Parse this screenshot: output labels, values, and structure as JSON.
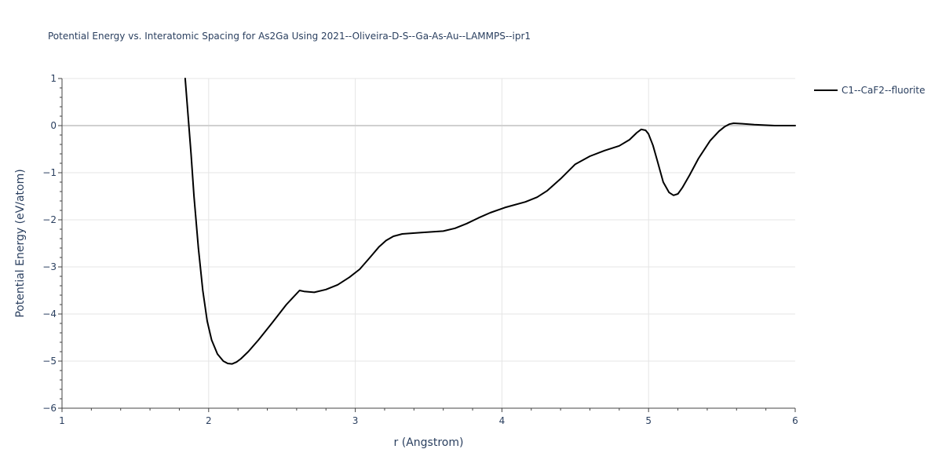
{
  "chart_data": {
    "type": "line",
    "title": "Potential Energy vs. Interatomic Spacing for As2Ga Using 2021--Oliveira-D-S--Ga-As-Au--LAMMPS--ipr1",
    "xlabel": "r (Angstrom)",
    "ylabel": "Potential Energy (eV/atom)",
    "xlim": [
      1,
      6
    ],
    "ylim": [
      -6,
      1
    ],
    "x_ticks": [
      1,
      2,
      3,
      4,
      5,
      6
    ],
    "y_ticks": [
      -6,
      -5,
      -4,
      -3,
      -2,
      -1,
      0,
      1
    ],
    "x_tick_labels": [
      "1",
      "2",
      "3",
      "4",
      "5",
      "6"
    ],
    "y_tick_labels": [
      "−6",
      "−5",
      "−4",
      "−3",
      "−2",
      "−1",
      "0",
      "1"
    ],
    "grid": true,
    "legend_position": "top-right",
    "colors": {
      "line": "#000000",
      "grid": "#e5e5e5",
      "zero_line": "#d0d0d0",
      "axis": "#444444",
      "text": "#2a3f5f",
      "background": "#ffffff"
    },
    "series": [
      {
        "name": "C1--CaF2--fluorite",
        "x": [
          1.84,
          1.86,
          1.88,
          1.9,
          1.93,
          1.96,
          1.99,
          2.02,
          2.06,
          2.1,
          2.13,
          2.16,
          2.19,
          2.22,
          2.27,
          2.34,
          2.43,
          2.53,
          2.62,
          2.65,
          2.72,
          2.8,
          2.88,
          2.96,
          3.03,
          3.1,
          3.16,
          3.21,
          3.26,
          3.32,
          3.45,
          3.6,
          3.68,
          3.76,
          3.84,
          3.92,
          4.02,
          4.16,
          4.24,
          4.31,
          4.4,
          4.5,
          4.6,
          4.7,
          4.8,
          4.87,
          4.92,
          4.95,
          4.98,
          5.0,
          5.03,
          5.06,
          5.1,
          5.14,
          5.17,
          5.2,
          5.23,
          5.28,
          5.34,
          5.42,
          5.48,
          5.52,
          5.55,
          5.58,
          5.64,
          5.72,
          5.86,
          6.0
        ],
        "y": [
          1.0,
          0.2,
          -0.6,
          -1.5,
          -2.6,
          -3.5,
          -4.15,
          -4.55,
          -4.85,
          -5.0,
          -5.05,
          -5.06,
          -5.02,
          -4.95,
          -4.8,
          -4.55,
          -4.2,
          -3.8,
          -3.5,
          -3.52,
          -3.54,
          -3.48,
          -3.38,
          -3.22,
          -3.05,
          -2.8,
          -2.58,
          -2.44,
          -2.35,
          -2.3,
          -2.27,
          -2.24,
          -2.18,
          -2.08,
          -1.96,
          -1.85,
          -1.74,
          -1.62,
          -1.52,
          -1.38,
          -1.13,
          -0.82,
          -0.65,
          -0.53,
          -0.43,
          -0.3,
          -0.15,
          -0.08,
          -0.1,
          -0.18,
          -0.42,
          -0.75,
          -1.2,
          -1.42,
          -1.48,
          -1.45,
          -1.32,
          -1.05,
          -0.7,
          -0.32,
          -0.12,
          -0.02,
          0.03,
          0.05,
          0.04,
          0.02,
          0.0,
          0.0
        ]
      }
    ]
  }
}
